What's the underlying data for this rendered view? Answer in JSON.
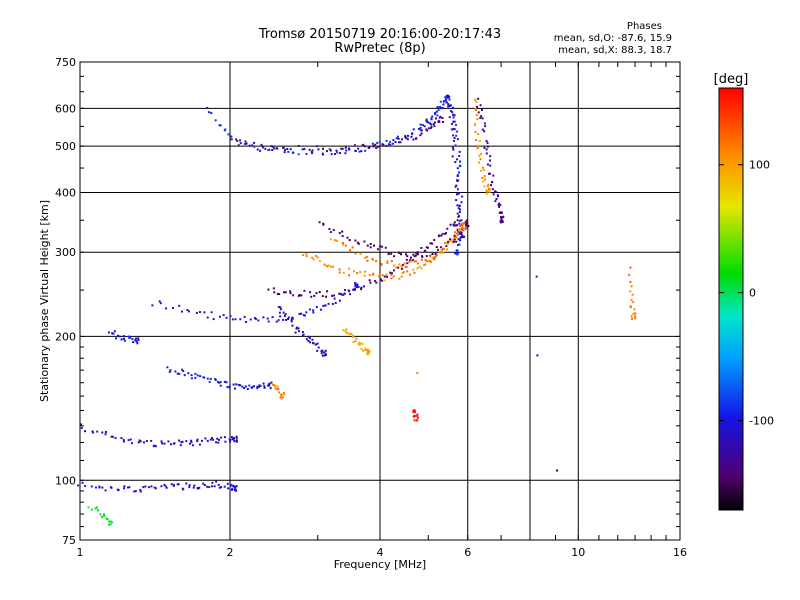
{
  "header": {
    "title_line1": "Tromsø 20150719 20:16:00-20:17:43",
    "title_line2": "RwPretec (8p)"
  },
  "phase_stats": {
    "heading": "Phases",
    "line_o": "mean, sd,O: -87.6, 15.9",
    "line_x": "mean, sd,X:  88.3, 18.7"
  },
  "colorbar": {
    "label": "[deg]",
    "ticks": [
      "100",
      "0",
      "-100"
    ]
  },
  "chart_data": {
    "type": "scatter",
    "title": "",
    "xlabel": "Frequency [MHz]",
    "ylabel": "Stationary phase Virtual Height [km]",
    "xscale": "log",
    "yscale": "log",
    "xlim": [
      1,
      16
    ],
    "ylim": [
      75,
      750
    ],
    "xticks": [
      1,
      2,
      4,
      6,
      10,
      16
    ],
    "xtick_labels": [
      "1",
      "2",
      "4",
      "6",
      "10",
      "16"
    ],
    "xgrid": [
      2,
      4,
      6,
      8,
      10
    ],
    "yticks": [
      75,
      100,
      200,
      300,
      400,
      500,
      600,
      750
    ],
    "ytick_labels": [
      "75",
      "100",
      "200",
      "300",
      "400",
      "500",
      "600",
      "750"
    ],
    "ygrid": [
      100,
      200,
      300,
      400,
      500,
      600
    ],
    "grid": true,
    "colorbar_range": [
      -170,
      160
    ],
    "series": [
      {
        "freq": [
          1.8,
          1.95,
          2.1,
          2.3,
          2.5,
          2.7,
          3.0,
          3.3,
          3.6,
          3.9,
          4.2,
          4.5,
          4.8,
          5.0
        ],
        "height": [
          600,
          540,
          510,
          495,
          490,
          487,
          487,
          488,
          492,
          500,
          510,
          525,
          545,
          565
        ],
        "phase": -95
      },
      {
        "freq": [
          2.0,
          2.3,
          2.6,
          3.0,
          3.4,
          3.7,
          4.0,
          4.3,
          4.6,
          4.9,
          5.1,
          5.3
        ],
        "height": [
          510,
          500,
          495,
          493,
          494,
          497,
          502,
          510,
          520,
          535,
          550,
          570
        ],
        "phase": -130
      },
      {
        "freq": [
          5.1,
          5.2,
          5.3,
          5.4,
          5.5,
          5.6,
          5.7,
          5.75,
          5.8,
          5.8,
          5.75,
          5.7
        ],
        "height": [
          570,
          590,
          610,
          630,
          620,
          580,
          520,
          460,
          400,
          350,
          320,
          300
        ],
        "phase": -95
      },
      {
        "freq": [
          5.5,
          5.55,
          5.6,
          5.65,
          5.7,
          5.75,
          5.8,
          5.85
        ],
        "height": [
          640,
          600,
          540,
          480,
          420,
          380,
          350,
          320
        ],
        "phase": -115
      },
      {
        "freq": [
          6.3,
          6.4,
          6.5,
          6.6,
          6.7,
          6.8,
          6.9,
          7.0,
          7.05
        ],
        "height": [
          620,
          580,
          520,
          470,
          430,
          400,
          380,
          360,
          350
        ],
        "phase": -130
      },
      {
        "freq": [
          6.2,
          6.25,
          6.3,
          6.4,
          6.5,
          6.6
        ],
        "height": [
          620,
          560,
          500,
          450,
          420,
          400
        ],
        "phase": 105
      },
      {
        "freq": [
          2.4,
          2.6,
          2.8,
          3.0,
          3.3,
          3.6,
          3.9,
          4.2,
          4.5,
          4.8,
          5.1,
          5.4,
          5.7
        ],
        "height": [
          250,
          248,
          246,
          245,
          246,
          250,
          260,
          270,
          285,
          300,
          315,
          330,
          345
        ],
        "phase": -140
      },
      {
        "freq": [
          2.8,
          3.0,
          3.2,
          3.5,
          3.8,
          4.1,
          4.4,
          4.7,
          5.0,
          5.3,
          5.6,
          5.9
        ],
        "height": [
          300,
          290,
          280,
          272,
          268,
          266,
          268,
          275,
          285,
          300,
          320,
          340
        ],
        "phase": 110
      },
      {
        "freq": [
          3.0,
          3.3,
          3.6,
          3.9,
          4.2,
          4.5,
          4.8,
          5.1,
          5.4,
          5.7,
          6.0
        ],
        "height": [
          345,
          330,
          318,
          308,
          300,
          296,
          296,
          300,
          310,
          325,
          345
        ],
        "phase": -145
      },
      {
        "freq": [
          3.2,
          3.5,
          3.8,
          4.1,
          4.4,
          4.7,
          5.0,
          5.3,
          5.6,
          5.9
        ],
        "height": [
          320,
          305,
          292,
          285,
          282,
          284,
          290,
          300,
          318,
          340
        ],
        "phase": 115
      },
      {
        "freq": [
          1.4,
          1.6,
          1.8,
          2.0,
          2.2,
          2.4,
          2.6,
          2.8,
          3.0,
          3.2,
          3.4,
          3.6
        ],
        "height": [
          235,
          228,
          222,
          218,
          216,
          216,
          218,
          222,
          228,
          236,
          245,
          255
        ],
        "phase": -105
      },
      {
        "freq": [
          1.0,
          1.1,
          1.2,
          1.3,
          1.4,
          1.5,
          1.6,
          1.7,
          1.8,
          1.9,
          2.0,
          2.05
        ],
        "height": [
          130,
          125,
          122,
          120,
          119,
          119,
          120,
          120,
          121,
          121,
          122,
          122
        ],
        "phase": -110
      },
      {
        "freq": [
          1.0,
          1.1,
          1.2,
          1.3,
          1.4,
          1.5,
          1.6,
          1.7,
          1.8,
          1.9,
          2.0,
          2.05
        ],
        "height": [
          98,
          97,
          96,
          96,
          96,
          97,
          97,
          97,
          98,
          98,
          97,
          96
        ],
        "phase": -105
      },
      {
        "freq": [
          1.5,
          1.6,
          1.7,
          1.8,
          1.9,
          2.0,
          2.1,
          2.2,
          2.3,
          2.4
        ],
        "height": [
          170,
          168,
          165,
          162,
          160,
          158,
          157,
          157,
          157,
          158
        ],
        "phase": -100
      },
      {
        "freq": [
          1.15,
          1.2,
          1.25,
          1.3
        ],
        "height": [
          205,
          200,
          198,
          196
        ],
        "phase": -100
      },
      {
        "freq": [
          2.5,
          2.6,
          2.7,
          2.8,
          2.9,
          3.0,
          3.1
        ],
        "height": [
          230,
          220,
          210,
          200,
          195,
          190,
          185
        ],
        "phase": -115
      },
      {
        "freq": [
          3.4,
          3.5,
          3.6,
          3.7,
          3.8
        ],
        "height": [
          205,
          200,
          195,
          190,
          185
        ],
        "phase": 95
      },
      {
        "freq": [
          2.45,
          2.5,
          2.55
        ],
        "height": [
          160,
          155,
          150
        ],
        "phase": 110
      },
      {
        "freq": [
          1.05,
          1.1,
          1.15
        ],
        "height": [
          88,
          85,
          82
        ],
        "phase": 10
      },
      {
        "freq": [
          12.6,
          12.8,
          12.9
        ],
        "height": [
          275,
          240,
          220
        ],
        "phase": 110
      },
      {
        "freq": [
          8.3
        ],
        "height": [
          265
        ],
        "phase": -110
      },
      {
        "freq": [
          8.2
        ],
        "height": [
          180
        ],
        "phase": -110
      },
      {
        "freq": [
          9.0
        ],
        "height": [
          104
        ],
        "phase": -140
      },
      {
        "freq": [
          4.7,
          4.72
        ],
        "height": [
          140,
          135
        ],
        "phase": 150
      },
      {
        "freq": [
          4.8
        ],
        "height": [
          170
        ],
        "phase": 110
      }
    ]
  }
}
